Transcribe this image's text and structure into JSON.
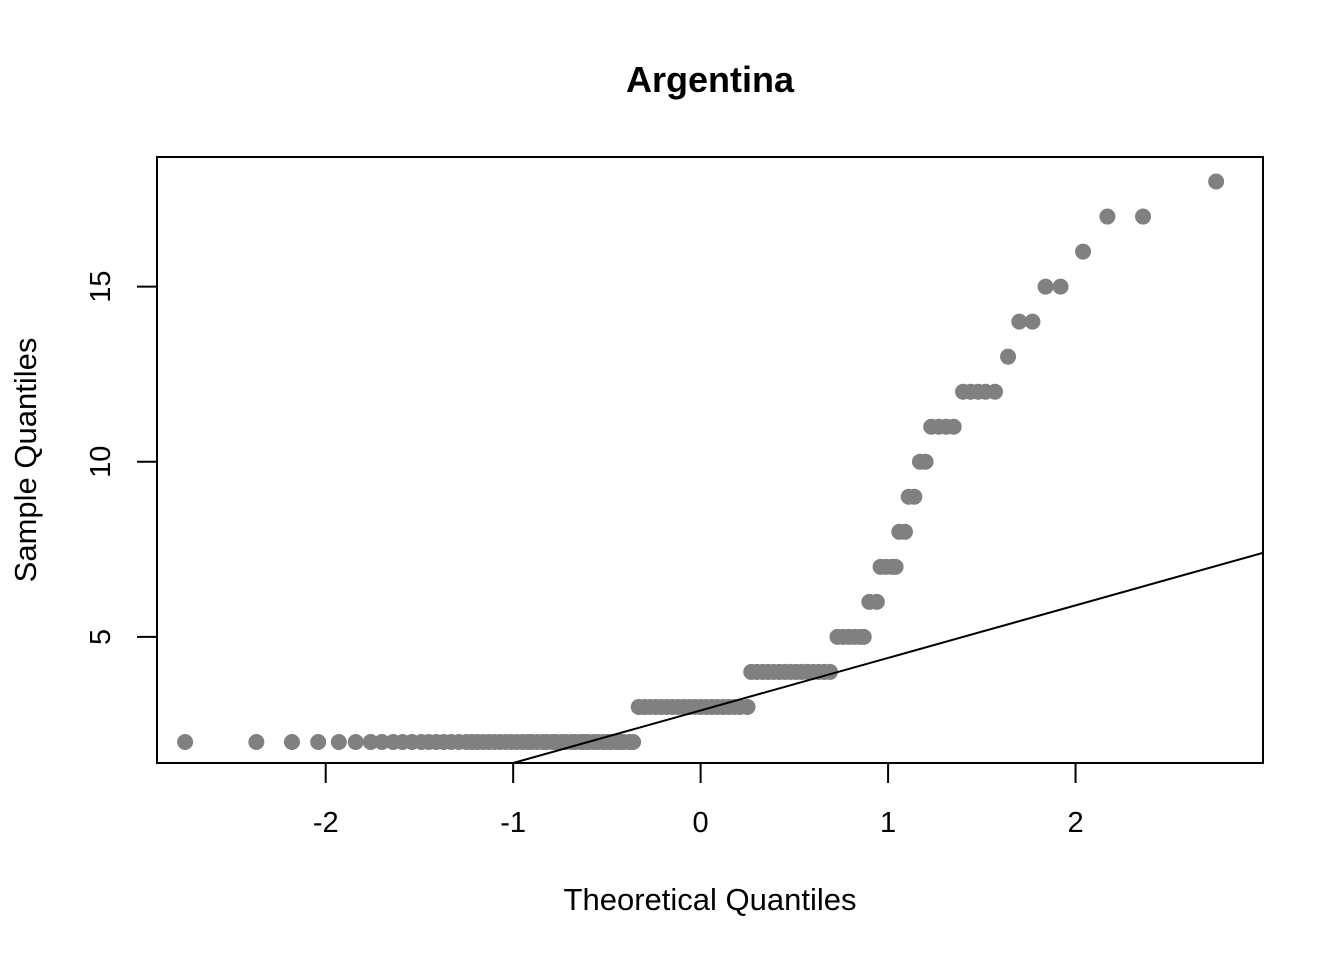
{
  "chart_data": {
    "type": "scatter",
    "title": "Argentina",
    "xlabel": "Theoretical Quantiles",
    "ylabel": "Sample Quantiles",
    "xlim": [
      -2.9,
      3.0
    ],
    "ylim": [
      1.4,
      18.7
    ],
    "xticks": [
      -2,
      -1,
      0,
      1,
      2
    ],
    "yticks": [
      5,
      10,
      15
    ],
    "grid": false,
    "legend": "none",
    "point_color": "#808080",
    "line_color": "#000000",
    "reference_line": {
      "intercept": 2.9,
      "slope": 1.5
    },
    "point_groups": [
      {
        "y": 2,
        "x_values": [
          -2.75,
          -2.37,
          -2.18,
          -2.04,
          -1.93,
          -1.84,
          -1.76,
          -1.7,
          -1.64,
          -1.59,
          -1.54,
          -1.49,
          -1.45,
          -1.41,
          -1.37,
          -1.33,
          -1.29,
          -1.25,
          -1.22,
          -1.19,
          -1.16,
          -1.13,
          -1.1,
          -1.07,
          -1.04,
          -1.01,
          -0.98,
          -0.95,
          -0.92,
          -0.9,
          -0.87,
          -0.84,
          -0.82,
          -0.79,
          -0.77,
          -0.74,
          -0.72,
          -0.69,
          -0.67,
          -0.64,
          -0.62,
          -0.6,
          -0.57,
          -0.55,
          -0.52,
          -0.5,
          -0.48,
          -0.45,
          -0.43,
          -0.41,
          -0.38,
          -0.36
        ]
      },
      {
        "y": 3,
        "x_values": [
          -0.33,
          -0.3,
          -0.27,
          -0.24,
          -0.21,
          -0.18,
          -0.15,
          -0.12,
          -0.09,
          -0.06,
          -0.03,
          0.0,
          0.03,
          0.06,
          0.09,
          0.12,
          0.15,
          0.18,
          0.21,
          0.25
        ]
      },
      {
        "y": 4,
        "x_values": [
          0.27,
          0.3,
          0.33,
          0.36,
          0.39,
          0.42,
          0.45,
          0.48,
          0.51,
          0.54,
          0.57,
          0.6,
          0.63,
          0.66,
          0.69
        ]
      },
      {
        "y": 5,
        "x_values": [
          0.73,
          0.76,
          0.79,
          0.82,
          0.85,
          0.87
        ]
      },
      {
        "y": 6,
        "x_values": [
          0.9,
          0.94
        ]
      },
      {
        "y": 7,
        "x_values": [
          0.96,
          0.99,
          1.02,
          1.04
        ]
      },
      {
        "y": 8,
        "x_values": [
          1.06,
          1.09
        ]
      },
      {
        "y": 9,
        "x_values": [
          1.11,
          1.14
        ]
      },
      {
        "y": 10,
        "x_values": [
          1.17,
          1.2
        ]
      },
      {
        "y": 11,
        "x_values": [
          1.23,
          1.27,
          1.31,
          1.35
        ]
      },
      {
        "y": 12,
        "x_values": [
          1.4,
          1.44,
          1.48,
          1.52,
          1.57
        ]
      },
      {
        "y": 13,
        "x_values": [
          1.64
        ]
      },
      {
        "y": 14,
        "x_values": [
          1.7,
          1.77
        ]
      },
      {
        "y": 15,
        "x_values": [
          1.84,
          1.92
        ]
      },
      {
        "y": 16,
        "x_values": [
          2.04
        ]
      },
      {
        "y": 17,
        "x_values": [
          2.17,
          2.36
        ]
      },
      {
        "y": 18,
        "x_values": [
          2.75
        ]
      }
    ]
  }
}
